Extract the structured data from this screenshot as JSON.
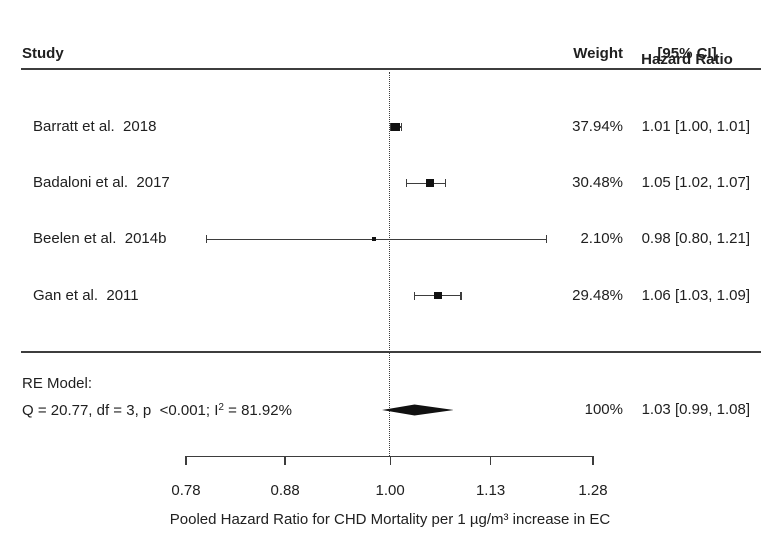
{
  "figure": {
    "background": "#ffffff",
    "text_color": "#202020",
    "line_color": "#3d3d3d",
    "marker_color": "#111111"
  },
  "header": {
    "study": "Study",
    "weight": "Weight",
    "hazard_ratio_line1": "Hazard Ratio",
    "hazard_ratio_line2": "[95% CI]"
  },
  "re_model": {
    "label": "RE Model:",
    "stats_prefix": "Q = 20.77, df = 3, p  <0.001; I",
    "stats_sup": "2",
    "stats_suffix": " = 81.92%"
  },
  "chart_data": {
    "type": "forest",
    "x_scale": "log",
    "xlim": [
      0.78,
      1.28
    ],
    "x_ticks": [
      "0.78",
      "0.88",
      "1.00",
      "1.13",
      "1.28"
    ],
    "x_tick_values": [
      0.78,
      0.88,
      1.0,
      1.13,
      1.28
    ],
    "reference_line": 1.0,
    "xlabel": "Pooled Hazard Ratio for CHD Mortality per 1 µg/m³ increase in EC",
    "studies": [
      {
        "label": "Barratt et al.  2018",
        "weight_text": "37.94%",
        "weight": 37.94,
        "ci_text": "1.01 [1.00, 1.01]",
        "est": 1.0065,
        "lo": 1.0005,
        "hi": 1.014
      },
      {
        "label": "Badaloni et al.  2017",
        "weight_text": "30.48%",
        "weight": 30.48,
        "ci_text": "1.05 [1.02, 1.07]",
        "est": 1.05,
        "lo": 1.02,
        "hi": 1.07
      },
      {
        "label": "Beelen et al.  2014b",
        "weight_text": "2.10%",
        "weight": 2.1,
        "ci_text": "0.98 [0.80, 1.21]",
        "est": 0.98,
        "lo": 0.8,
        "hi": 1.21
      },
      {
        "label": "Gan et al.  2011",
        "weight_text": "29.48%",
        "weight": 29.48,
        "ci_text": "1.06 [1.03, 1.09]",
        "est": 1.06,
        "lo": 1.03,
        "hi": 1.09
      }
    ],
    "summary": {
      "label": "RE Model",
      "weight_text": "100%",
      "ci_text": "1.03 [0.99, 1.08]",
      "est": 1.03,
      "lo": 0.99,
      "hi": 1.08
    }
  }
}
